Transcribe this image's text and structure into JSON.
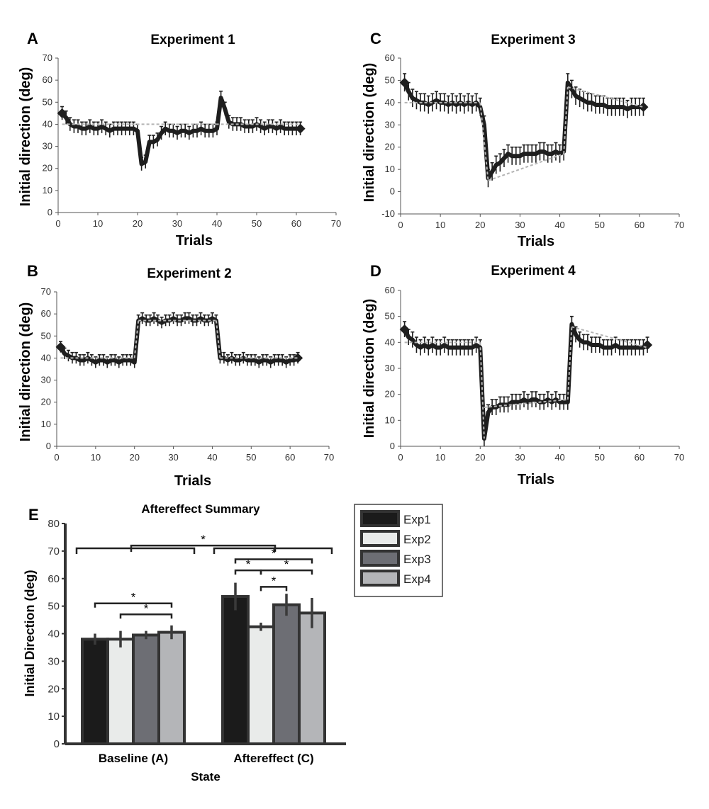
{
  "colors": {
    "line": "#1e1e1e",
    "dashed": "#b4b4b4",
    "axis": "#555555",
    "bar_border": "#333333",
    "exp1": "#1b1b1b",
    "exp2": "#e9ebea",
    "exp3": "#6d6e74",
    "exp4": "#b4b5b8"
  },
  "chart_data": [
    {
      "id": "A",
      "type": "line",
      "panel_label": "A",
      "title": "Experiment 1",
      "xlabel": "Trials",
      "ylabel": "Initial direction (deg)",
      "xlim": [
        0,
        70
      ],
      "ylim": [
        0,
        70
      ],
      "xticks": [
        0,
        10,
        20,
        30,
        40,
        50,
        60,
        70
      ],
      "yticks": [
        0,
        10,
        20,
        30,
        40,
        50,
        60,
        70
      ],
      "series": [
        {
          "x": [
            1,
            2,
            3,
            4,
            5,
            6,
            7,
            8,
            9,
            10,
            11,
            12,
            13,
            14,
            15,
            16,
            17,
            18,
            19,
            20,
            21,
            22,
            23,
            24,
            25,
            26,
            27,
            28,
            29,
            30,
            31,
            32,
            33,
            34,
            35,
            36,
            37,
            38,
            39,
            40,
            41,
            42,
            43,
            44,
            45,
            46,
            47,
            48,
            49,
            50,
            51,
            52,
            53,
            54,
            55,
            56,
            57,
            58,
            59,
            60,
            61
          ],
          "y": [
            45,
            43,
            40,
            39,
            39,
            38,
            38,
            39,
            38,
            38,
            39,
            38,
            37,
            38,
            38,
            38,
            38,
            38,
            38,
            37,
            22,
            23,
            32,
            32,
            33,
            36,
            38,
            37,
            37,
            36,
            37,
            37,
            36,
            37,
            37,
            38,
            37,
            37,
            37,
            38,
            52,
            47,
            41,
            40,
            40,
            40,
            39,
            39,
            39,
            40,
            39,
            38,
            39,
            39,
            38,
            39,
            38,
            38,
            38,
            38,
            38
          ],
          "err": 3
        }
      ],
      "reference": [
        {
          "x": [
            1,
            61
          ],
          "y": [
            40,
            40
          ]
        }
      ]
    },
    {
      "id": "B",
      "type": "line",
      "panel_label": "B",
      "title": "Experiment 2",
      "xlabel": "Trials",
      "ylabel": "Initial direction (deg)",
      "xlim": [
        0,
        70
      ],
      "ylim": [
        0,
        70
      ],
      "xticks": [
        0,
        10,
        20,
        30,
        40,
        50,
        60,
        70
      ],
      "yticks": [
        0,
        10,
        20,
        30,
        40,
        50,
        60,
        70
      ],
      "series": [
        {
          "x": [
            1,
            2,
            3,
            4,
            5,
            6,
            7,
            8,
            9,
            10,
            11,
            12,
            13,
            14,
            15,
            16,
            17,
            18,
            19,
            20,
            21,
            22,
            23,
            24,
            25,
            26,
            27,
            28,
            29,
            30,
            31,
            32,
            33,
            34,
            35,
            36,
            37,
            38,
            39,
            40,
            41,
            42,
            43,
            44,
            45,
            46,
            47,
            48,
            49,
            50,
            51,
            52,
            53,
            54,
            55,
            56,
            57,
            58,
            59,
            60,
            61,
            62
          ],
          "y": [
            45,
            42,
            41,
            40,
            40,
            39,
            39,
            40,
            39,
            38,
            39,
            39,
            38,
            39,
            39,
            38,
            39,
            39,
            39,
            38,
            57,
            58,
            57,
            57,
            58,
            57,
            56,
            57,
            57,
            58,
            57,
            57,
            58,
            58,
            57,
            57,
            58,
            57,
            57,
            58,
            57,
            40,
            40,
            39,
            40,
            39,
            39,
            40,
            39,
            39,
            39,
            38,
            39,
            39,
            38,
            39,
            39,
            39,
            38,
            39,
            39,
            40
          ],
          "err": 2.5
        }
      ],
      "reference": [
        {
          "x": [
            1,
            20
          ],
          "y": [
            40,
            40
          ]
        },
        {
          "x": [
            20,
            21
          ],
          "y": [
            40,
            57
          ]
        },
        {
          "x": [
            21,
            41
          ],
          "y": [
            57,
            57
          ]
        },
        {
          "x": [
            41,
            42
          ],
          "y": [
            57,
            40
          ]
        },
        {
          "x": [
            42,
            62
          ],
          "y": [
            40,
            40
          ]
        }
      ]
    },
    {
      "id": "C",
      "type": "line",
      "panel_label": "C",
      "title": "Experiment 3",
      "xlabel": "Trials",
      "ylabel": "Initial direction (deg)",
      "xlim": [
        0,
        70
      ],
      "ylim": [
        -10,
        60
      ],
      "xticks": [
        0,
        10,
        20,
        30,
        40,
        50,
        60,
        70
      ],
      "yticks": [
        -10,
        0,
        10,
        20,
        30,
        40,
        50,
        60
      ],
      "series": [
        {
          "x": [
            1,
            2,
            3,
            4,
            5,
            6,
            7,
            8,
            9,
            10,
            11,
            12,
            13,
            14,
            15,
            16,
            17,
            18,
            19,
            20,
            21,
            22,
            23,
            24,
            25,
            26,
            27,
            28,
            29,
            30,
            31,
            32,
            33,
            34,
            35,
            36,
            37,
            38,
            39,
            40,
            41,
            42,
            43,
            44,
            45,
            46,
            47,
            48,
            49,
            50,
            51,
            52,
            53,
            54,
            55,
            56,
            57,
            58,
            59,
            60,
            61
          ],
          "y": [
            49,
            45,
            42,
            41,
            40,
            40,
            39,
            40,
            41,
            40,
            40,
            39,
            40,
            39,
            40,
            39,
            40,
            39,
            40,
            38,
            30,
            6,
            9,
            12,
            13,
            15,
            17,
            16,
            16,
            16,
            17,
            17,
            17,
            17,
            18,
            18,
            17,
            17,
            18,
            17,
            18,
            49,
            46,
            43,
            42,
            41,
            40,
            40,
            39,
            39,
            39,
            38,
            38,
            38,
            38,
            38,
            37,
            38,
            38,
            38,
            38
          ],
          "err": 4
        }
      ],
      "reference": [
        {
          "x": [
            1,
            20
          ],
          "y": [
            40,
            40
          ]
        },
        {
          "x": [
            20,
            22
          ],
          "y": [
            40,
            5
          ]
        },
        {
          "x": [
            22,
            41
          ],
          "y": [
            5,
            17
          ]
        },
        {
          "x": [
            41,
            42
          ],
          "y": [
            17,
            47
          ]
        },
        {
          "x": [
            42,
            61
          ],
          "y": [
            47,
            38
          ]
        }
      ]
    },
    {
      "id": "D",
      "type": "line",
      "panel_label": "D",
      "title": "Experiment 4",
      "xlabel": "Trials",
      "ylabel": "Initial direction (deg)",
      "xlim": [
        0,
        70
      ],
      "ylim": [
        0,
        60
      ],
      "xticks": [
        0,
        10,
        20,
        30,
        40,
        50,
        60,
        70
      ],
      "yticks": [
        0,
        10,
        20,
        30,
        40,
        50,
        60
      ],
      "series": [
        {
          "x": [
            1,
            2,
            3,
            4,
            5,
            6,
            7,
            8,
            9,
            10,
            11,
            12,
            13,
            14,
            15,
            16,
            17,
            18,
            19,
            20,
            21,
            22,
            23,
            24,
            25,
            26,
            27,
            28,
            29,
            30,
            31,
            32,
            33,
            34,
            35,
            36,
            37,
            38,
            39,
            40,
            41,
            42,
            43,
            44,
            45,
            46,
            47,
            48,
            49,
            50,
            51,
            52,
            53,
            54,
            55,
            56,
            57,
            58,
            59,
            60,
            61,
            62
          ],
          "y": [
            45,
            42,
            41,
            39,
            38,
            39,
            38,
            39,
            38,
            38,
            39,
            38,
            38,
            38,
            38,
            38,
            38,
            38,
            39,
            38,
            3,
            13,
            15,
            15,
            16,
            16,
            16,
            17,
            17,
            17,
            18,
            17,
            18,
            18,
            17,
            17,
            18,
            17,
            18,
            17,
            17,
            17,
            47,
            43,
            41,
            40,
            40,
            39,
            39,
            39,
            38,
            38,
            38,
            39,
            38,
            38,
            38,
            38,
            38,
            38,
            38,
            39
          ],
          "err": 3
        }
      ],
      "reference": [
        {
          "x": [
            1,
            20
          ],
          "y": [
            40,
            40
          ]
        },
        {
          "x": [
            20,
            21
          ],
          "y": [
            40,
            3
          ]
        },
        {
          "x": [
            21,
            42
          ],
          "y": [
            15,
            18
          ]
        },
        {
          "x": [
            42,
            43
          ],
          "y": [
            18,
            46
          ]
        },
        {
          "x": [
            43,
            62
          ],
          "y": [
            46,
            38
          ]
        }
      ]
    },
    {
      "id": "E",
      "type": "bar",
      "panel_label": "E",
      "title": "Aftereffect Summary",
      "xlabel": "State",
      "ylabel": "Initial Direction (deg)",
      "ylim": [
        0,
        80
      ],
      "yticks": [
        0,
        10,
        20,
        30,
        40,
        50,
        60,
        70,
        80
      ],
      "categories": [
        "Baseline (A)",
        "Aftereffect (C)"
      ],
      "series": [
        {
          "name": "Exp1",
          "values": [
            38,
            53.5
          ],
          "errors": [
            2,
            5
          ]
        },
        {
          "name": "Exp2",
          "values": [
            38,
            42.5
          ],
          "errors": [
            3,
            1.5
          ]
        },
        {
          "name": "Exp3",
          "values": [
            39.5,
            50.5
          ],
          "errors": [
            1.5,
            4
          ]
        },
        {
          "name": "Exp4",
          "values": [
            40.5,
            47.5
          ],
          "errors": [
            2.5,
            5.5
          ]
        }
      ],
      "significance": [
        {
          "label": "*",
          "y": 72,
          "between": "Baseline (A) vs Aftereffect (C)"
        },
        {
          "label": "*",
          "y": 51,
          "between": "Baseline Exp1 vs Exp4"
        },
        {
          "label": "*",
          "y": 47,
          "between": "Baseline Exp2 vs Exp4"
        },
        {
          "label": "*",
          "y": 67,
          "between": "Aftereffect Exp1 vs Exp4"
        },
        {
          "label": "*",
          "y": 63,
          "between": "Aftereffect Exp1 vs Exp2"
        },
        {
          "label": "*",
          "y": 63,
          "between": "Aftereffect Exp2 vs Exp4"
        },
        {
          "label": "*",
          "y": 57,
          "between": "Aftereffect Exp2 vs Exp3"
        }
      ],
      "legend_position": "right"
    }
  ]
}
